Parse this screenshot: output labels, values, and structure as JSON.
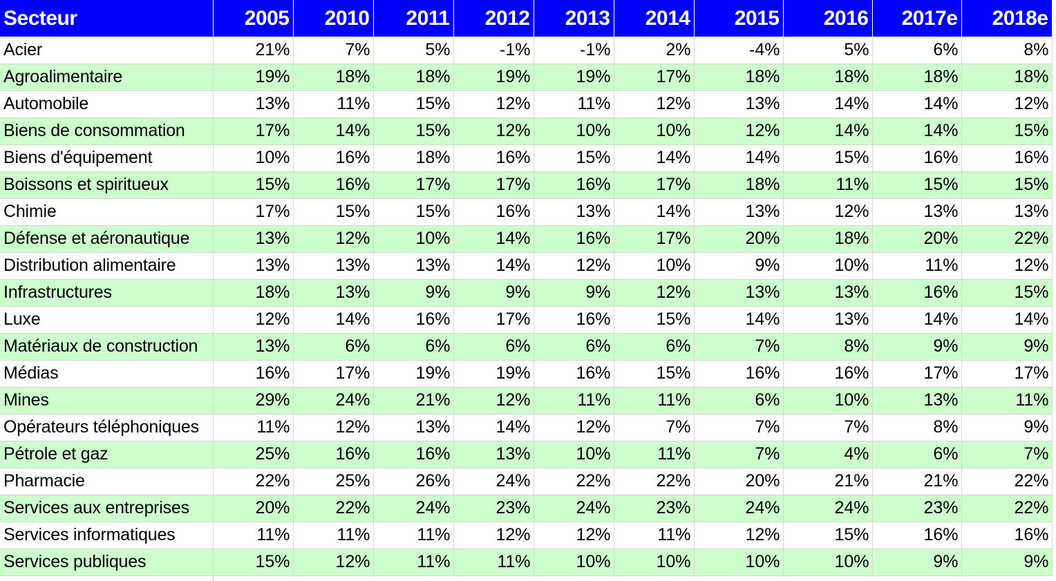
{
  "chart_data": {
    "type": "table",
    "columns": [
      "Secteur",
      "2005",
      "2010",
      "2011",
      "2012",
      "2013",
      "2014",
      "2015",
      "2016",
      "2017e",
      "2018e"
    ],
    "rows": [
      {
        "sector": "Acier",
        "values": [
          "21%",
          "7%",
          "5%",
          "-1%",
          "-1%",
          "2%",
          "-4%",
          "5%",
          "6%",
          "8%"
        ]
      },
      {
        "sector": "Agroalimentaire",
        "values": [
          "19%",
          "18%",
          "18%",
          "19%",
          "19%",
          "17%",
          "18%",
          "18%",
          "18%",
          "18%"
        ]
      },
      {
        "sector": "Automobile",
        "values": [
          "13%",
          "11%",
          "15%",
          "12%",
          "11%",
          "12%",
          "13%",
          "14%",
          "14%",
          "12%"
        ]
      },
      {
        "sector": "Biens de consommation",
        "values": [
          "17%",
          "14%",
          "15%",
          "12%",
          "10%",
          "10%",
          "12%",
          "14%",
          "14%",
          "15%"
        ]
      },
      {
        "sector": "Biens d'équipement",
        "values": [
          "10%",
          "16%",
          "18%",
          "16%",
          "15%",
          "14%",
          "14%",
          "15%",
          "16%",
          "16%"
        ]
      },
      {
        "sector": "Boissons et spiritueux",
        "values": [
          "15%",
          "16%",
          "17%",
          "17%",
          "16%",
          "17%",
          "18%",
          "11%",
          "15%",
          "15%"
        ]
      },
      {
        "sector": "Chimie",
        "values": [
          "17%",
          "15%",
          "15%",
          "16%",
          "13%",
          "14%",
          "13%",
          "12%",
          "13%",
          "13%"
        ]
      },
      {
        "sector": "Défense et aéronautique",
        "values": [
          "13%",
          "12%",
          "10%",
          "14%",
          "16%",
          "17%",
          "20%",
          "18%",
          "20%",
          "22%"
        ]
      },
      {
        "sector": "Distribution alimentaire",
        "values": [
          "13%",
          "13%",
          "13%",
          "14%",
          "12%",
          "10%",
          "9%",
          "10%",
          "11%",
          "12%"
        ]
      },
      {
        "sector": "Infrastructures",
        "values": [
          "18%",
          "13%",
          "9%",
          "9%",
          "9%",
          "12%",
          "13%",
          "13%",
          "16%",
          "15%"
        ]
      },
      {
        "sector": "Luxe",
        "values": [
          "12%",
          "14%",
          "16%",
          "17%",
          "16%",
          "15%",
          "14%",
          "13%",
          "14%",
          "14%"
        ]
      },
      {
        "sector": "Matériaux de construction",
        "values": [
          "13%",
          "6%",
          "6%",
          "6%",
          "6%",
          "6%",
          "7%",
          "8%",
          "9%",
          "9%"
        ]
      },
      {
        "sector": "Médias",
        "values": [
          "16%",
          "17%",
          "19%",
          "19%",
          "16%",
          "15%",
          "16%",
          "16%",
          "17%",
          "17%"
        ]
      },
      {
        "sector": "Mines",
        "values": [
          "29%",
          "24%",
          "21%",
          "12%",
          "11%",
          "11%",
          "6%",
          "10%",
          "13%",
          "11%"
        ]
      },
      {
        "sector": "Opérateurs téléphoniques",
        "values": [
          "11%",
          "12%",
          "13%",
          "14%",
          "12%",
          "7%",
          "7%",
          "7%",
          "8%",
          "9%"
        ]
      },
      {
        "sector": "Pétrole et gaz",
        "values": [
          "25%",
          "16%",
          "16%",
          "13%",
          "10%",
          "11%",
          "7%",
          "4%",
          "6%",
          "7%"
        ]
      },
      {
        "sector": "Pharmacie",
        "values": [
          "22%",
          "25%",
          "26%",
          "24%",
          "22%",
          "22%",
          "20%",
          "21%",
          "21%",
          "22%"
        ]
      },
      {
        "sector": "Services aux entreprises",
        "values": [
          "20%",
          "22%",
          "24%",
          "23%",
          "24%",
          "23%",
          "24%",
          "24%",
          "23%",
          "22%"
        ]
      },
      {
        "sector": "Services informatiques",
        "values": [
          "11%",
          "11%",
          "11%",
          "12%",
          "12%",
          "11%",
          "12%",
          "15%",
          "16%",
          "16%"
        ]
      },
      {
        "sector": "Services publiques",
        "values": [
          "15%",
          "12%",
          "11%",
          "11%",
          "10%",
          "10%",
          "10%",
          "10%",
          "9%",
          "9%"
        ]
      }
    ],
    "colors": {
      "header_background": "#0000ff",
      "header_text": "#ffffff",
      "alternate_row": "#ccffcc",
      "plain_row": "#ffffff"
    }
  }
}
